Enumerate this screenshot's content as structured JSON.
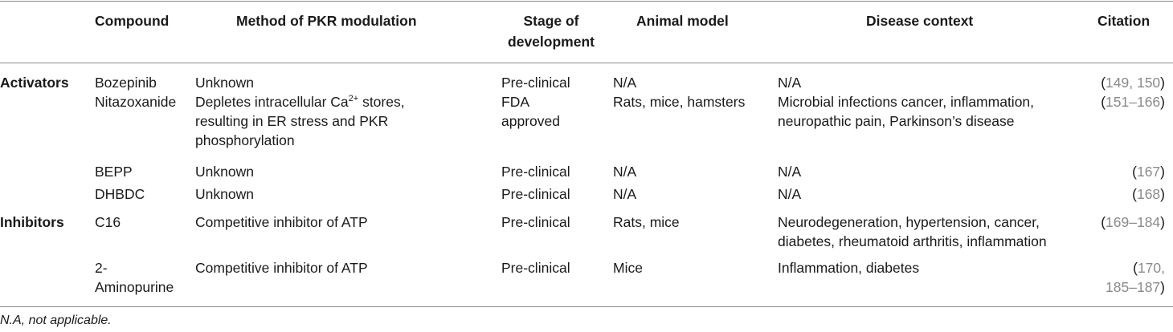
{
  "headers": {
    "compound": "Compound",
    "method": "Method of PKR modulation",
    "stage_line1": "Stage of",
    "stage_line2": "development",
    "animal": "Animal model",
    "disease": "Disease context",
    "citation": "Citation"
  },
  "groups": {
    "activators": "Activators",
    "inhibitors": "Inhibitors"
  },
  "rows": [
    {
      "compound": "Bozepinib",
      "method": [
        "Unknown"
      ],
      "stage": [
        "Pre-clinical"
      ],
      "animal": "N/A",
      "disease": [
        "N/A"
      ],
      "citation": [
        {
          "open": "(",
          "refs": "149, 150",
          "close": ")"
        }
      ]
    },
    {
      "compound": "Nitazoxanide",
      "method_l1_pre": "Depletes intracellular Ca",
      "method_l1_sup": "2+",
      "method_l1_post": " stores,",
      "method_l2": "resulting in ER stress and PKR",
      "method_l3": "phosphorylation",
      "stage": [
        "FDA",
        "approved"
      ],
      "animal": "Rats, mice, hamsters",
      "disease": [
        "Microbial infections cancer, inflammation,",
        "neuropathic pain, Parkinson’s disease"
      ],
      "citation": [
        {
          "open": "(",
          "refs": "151–166",
          "close": ")"
        }
      ]
    },
    {
      "compound": "BEPP",
      "method": [
        "Unknown"
      ],
      "stage": [
        "Pre-clinical"
      ],
      "animal": "N/A",
      "disease": [
        "N/A"
      ],
      "citation": [
        {
          "open": "(",
          "refs": "167",
          "close": ")"
        }
      ]
    },
    {
      "compound": "DHBDC",
      "method": [
        "Unknown"
      ],
      "stage": [
        "Pre-clinical"
      ],
      "animal": "N/A",
      "disease": [
        "N/A"
      ],
      "citation": [
        {
          "open": "(",
          "refs": "168",
          "close": ")"
        }
      ]
    },
    {
      "compound": "C16",
      "method": [
        "Competitive inhibitor of ATP"
      ],
      "stage": [
        "Pre-clinical"
      ],
      "animal": "Rats, mice",
      "disease": [
        "Neurodegeneration, hypertension, cancer,",
        "diabetes, rheumatoid arthritis, inflammation"
      ],
      "citation": [
        {
          "open": "(",
          "refs": "169–184",
          "close": ")"
        }
      ]
    },
    {
      "compound_l1": "2-",
      "compound_l2": "Aminopurine",
      "method": [
        "Competitive inhibitor of ATP"
      ],
      "stage": [
        "Pre-clinical"
      ],
      "animal": "Mice",
      "disease": [
        "Inflammation, diabetes"
      ],
      "citation": [
        {
          "open": "(",
          "refs": "170,",
          "close": ""
        },
        {
          "open": "",
          "refs": "185–187",
          "close": ")"
        }
      ]
    }
  ],
  "footnote": "N.A, not applicable."
}
